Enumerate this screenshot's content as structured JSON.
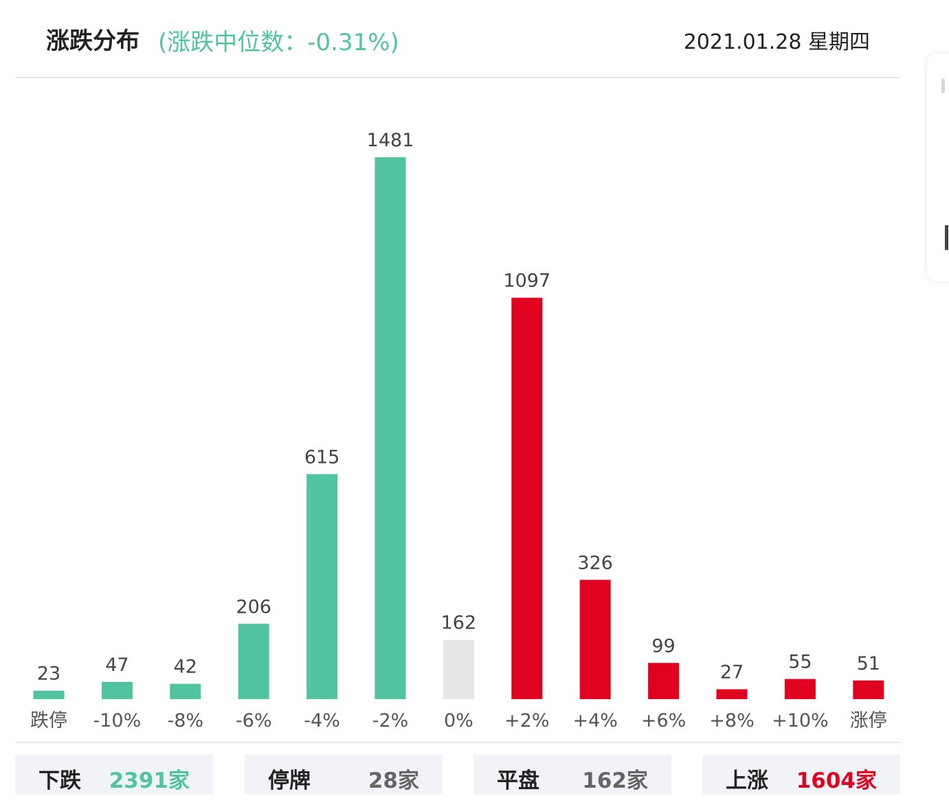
{
  "header": {
    "title": "涨跌分布",
    "subtitle": "(涨跌中位数：-0.31%)",
    "date": "2021.01.28 星期四"
  },
  "colors": {
    "down": "#52c3a1",
    "flat": "#e6e6e6",
    "up": "#df0320",
    "neutral_text": "#666666"
  },
  "chart_data": {
    "type": "bar",
    "categories": [
      "跌停",
      "-10%",
      "-8%",
      "-6%",
      "-4%",
      "-2%",
      "0%",
      "+2%",
      "+4%",
      "+6%",
      "+8%",
      "+10%",
      "涨停"
    ],
    "values": [
      23,
      47,
      42,
      206,
      615,
      1481,
      162,
      1097,
      326,
      99,
      27,
      55,
      51
    ],
    "bar_colors": [
      "down",
      "down",
      "down",
      "down",
      "down",
      "down",
      "flat",
      "up",
      "up",
      "up",
      "up",
      "up",
      "up"
    ],
    "ylim": [
      0,
      1481
    ],
    "grid": false,
    "legend": "none"
  },
  "stats": [
    {
      "label": "下跌",
      "value": "2391家",
      "color": "down"
    },
    {
      "label": "停牌",
      "value": "28家",
      "color": "neutral_text"
    },
    {
      "label": "平盘",
      "value": "162家",
      "color": "neutral_text"
    },
    {
      "label": "上涨",
      "value": "1604家",
      "color": "up"
    }
  ]
}
